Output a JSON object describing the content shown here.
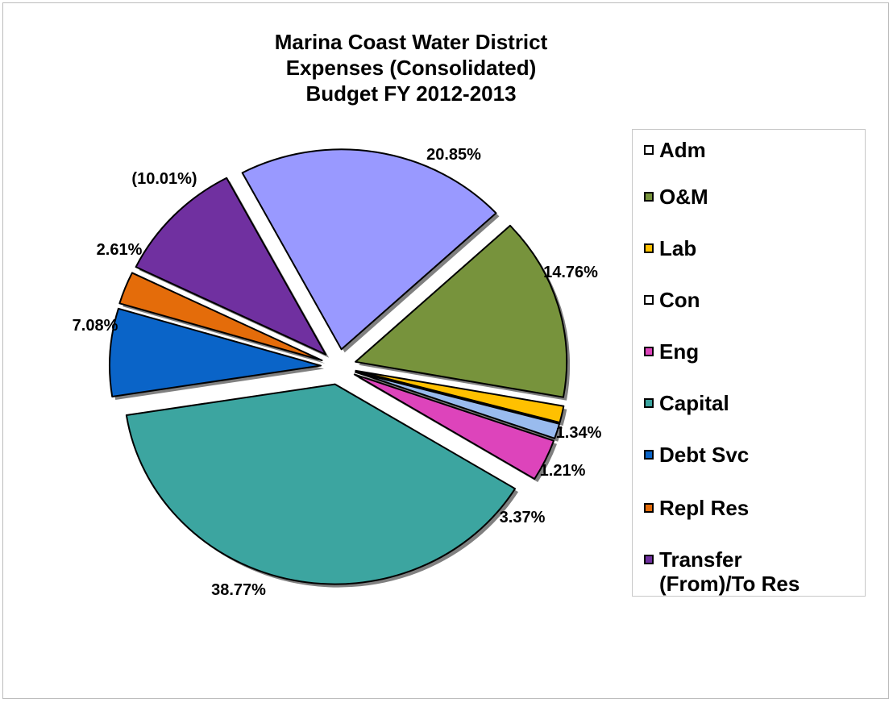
{
  "chart_data": {
    "type": "pie",
    "title_lines": [
      "Marina Coast Water District",
      "Expenses (Consolidated)",
      "Budget FY 2012-2013"
    ],
    "slices": [
      {
        "name": "Adm",
        "value": 20.85,
        "label": "20.85%",
        "color": "#9999ff"
      },
      {
        "name": "O&M",
        "value": 14.76,
        "label": "14.76%",
        "color": "#77933c"
      },
      {
        "name": "Lab",
        "value": 1.34,
        "label": "1.34%",
        "color": "#ffc000"
      },
      {
        "name": "Con",
        "value": 1.21,
        "label": "1.21%",
        "color": "#99bbee"
      },
      {
        "name": "Eng",
        "value": 3.37,
        "label": "3.37%",
        "color": "#dd44bb"
      },
      {
        "name": "Capital",
        "value": 38.77,
        "label": "38.77%",
        "color": "#3ca5a0"
      },
      {
        "name": "Debt Svc",
        "value": 7.08,
        "label": "7.08%",
        "color": "#0a64c8"
      },
      {
        "name": "Repl Res",
        "value": 2.61,
        "label": "2.61%",
        "color": "#e46c0a"
      },
      {
        "name": "Transfer (From)/To Res",
        "value": 10.01,
        "label": "(10.01%)",
        "color": "#7030a0"
      }
    ],
    "legend": {
      "position": "right",
      "items": [
        {
          "label": "Adm",
          "color": "#ffffff"
        },
        {
          "label": "O&M",
          "color": "#77933c"
        },
        {
          "label": "Lab",
          "color": "#ffc000"
        },
        {
          "label": "Con",
          "color": "#ffffff"
        },
        {
          "label": "Eng",
          "color": "#dd44bb"
        },
        {
          "label": "Capital",
          "color": "#3ca5a0"
        },
        {
          "label": "Debt Svc",
          "color": "#0a64c8"
        },
        {
          "label": "Repl Res",
          "color": "#e46c0a"
        },
        {
          "label": "Transfer (From)/To Res",
          "color": "#7030a0"
        }
      ]
    }
  }
}
